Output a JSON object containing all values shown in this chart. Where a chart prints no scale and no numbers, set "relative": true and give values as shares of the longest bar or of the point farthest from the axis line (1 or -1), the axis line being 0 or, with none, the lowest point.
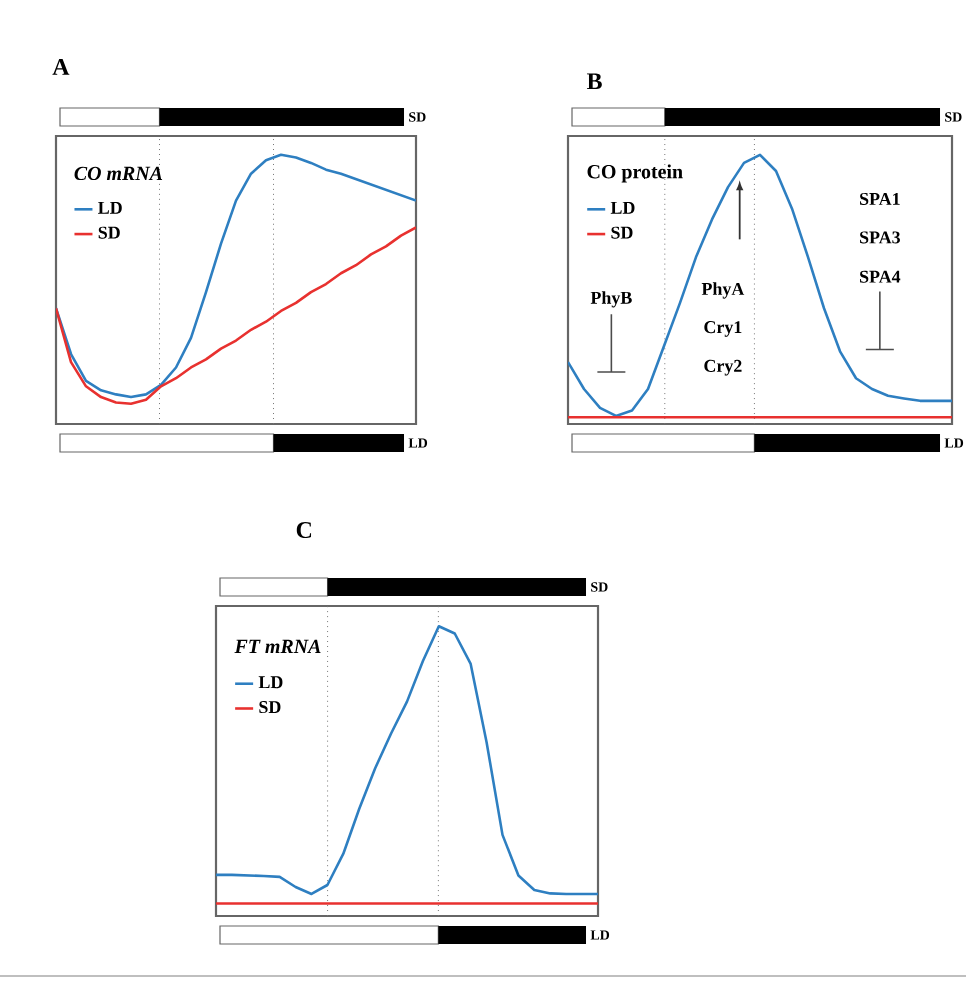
{
  "chart_data": [
    {
      "type": "line",
      "relative": true,
      "title": "A",
      "subtitle": "CO mRNA",
      "legend": "top left",
      "categories": [
        null,
        null,
        null,
        null,
        null,
        null,
        null,
        null,
        null,
        null,
        null,
        null,
        null,
        null,
        null,
        null,
        null,
        null,
        null,
        null,
        null,
        null,
        null,
        null,
        null
      ],
      "series": [
        {
          "name": "LD",
          "color": "#2e7fc1",
          "values": [
            0.43,
            0.26,
            0.16,
            0.125,
            0.11,
            0.1,
            0.11,
            0.145,
            0.21,
            0.32,
            0.49,
            0.67,
            0.83,
            0.93,
            0.98,
            1.0,
            0.99,
            0.97,
            0.945,
            0.93,
            0.91,
            0.89,
            0.87,
            0.85,
            0.83
          ]
        },
        {
          "name": "SD",
          "color": "#e8312f",
          "values": [
            0.43,
            0.23,
            0.14,
            0.1,
            0.08,
            0.075,
            0.09,
            0.14,
            0.17,
            0.21,
            0.24,
            0.28,
            0.31,
            0.35,
            0.38,
            0.42,
            0.45,
            0.49,
            0.52,
            0.56,
            0.59,
            0.63,
            0.66,
            0.7,
            0.73
          ]
        }
      ],
      "annotations": [
        "SD",
        "LD"
      ]
    },
    {
      "type": "line",
      "relative": true,
      "title": "B",
      "subtitle": "CO  protein",
      "legend": "top left",
      "categories": [
        null,
        null,
        null,
        null,
        null,
        null,
        null,
        null,
        null,
        null,
        null,
        null,
        null,
        null,
        null,
        null,
        null,
        null,
        null,
        null,
        null,
        null,
        null,
        null,
        null
      ],
      "series": [
        {
          "name": "LD",
          "color": "#2e7fc1",
          "values": [
            0.23,
            0.13,
            0.06,
            0.03,
            0.05,
            0.13,
            0.29,
            0.45,
            0.62,
            0.76,
            0.88,
            0.97,
            1.0,
            0.94,
            0.8,
            0.62,
            0.43,
            0.27,
            0.17,
            0.13,
            0.105,
            0.095,
            0.086,
            0.086,
            0.086
          ]
        },
        {
          "name": "SD",
          "color": "#e8312f",
          "values": [
            0.025,
            0.025,
            0.025,
            0.025,
            0.025,
            0.025,
            0.025,
            0.025,
            0.025,
            0.025,
            0.025,
            0.025,
            0.025,
            0.025,
            0.025,
            0.025,
            0.025,
            0.025,
            0.025,
            0.025,
            0.025,
            0.025,
            0.025,
            0.025,
            0.025
          ]
        }
      ],
      "annotations": [
        "SD",
        "LD",
        "PhyB",
        "PhyA",
        "Cry1",
        "Cry2",
        "SPA1",
        "SPA3",
        "SPA4"
      ]
    },
    {
      "type": "line",
      "relative": true,
      "title": "C",
      "subtitle": "FT  mRNA",
      "legend": "top left",
      "categories": [
        null,
        null,
        null,
        null,
        null,
        null,
        null,
        null,
        null,
        null,
        null,
        null,
        null,
        null,
        null,
        null,
        null,
        null,
        null,
        null,
        null,
        null,
        null,
        null,
        null
      ],
      "series": [
        {
          "name": "LD",
          "color": "#2e7fc1",
          "values": [
            0.142,
            0.142,
            0.14,
            0.138,
            0.135,
            0.1,
            0.076,
            0.107,
            0.215,
            0.37,
            0.51,
            0.63,
            0.74,
            0.88,
            1.0,
            0.975,
            0.87,
            0.6,
            0.28,
            0.14,
            0.09,
            0.078,
            0.076,
            0.076,
            0.076
          ]
        },
        {
          "name": "SD",
          "color": "#e8312f",
          "values": [
            0.043,
            0.043,
            0.043,
            0.043,
            0.043,
            0.043,
            0.043,
            0.043,
            0.043,
            0.043,
            0.043,
            0.043,
            0.043,
            0.043,
            0.043,
            0.043,
            0.043,
            0.043,
            0.043,
            0.043,
            0.043,
            0.043,
            0.043,
            0.043,
            0.043
          ]
        }
      ],
      "annotations": [
        "SD",
        "LD"
      ]
    }
  ]
}
